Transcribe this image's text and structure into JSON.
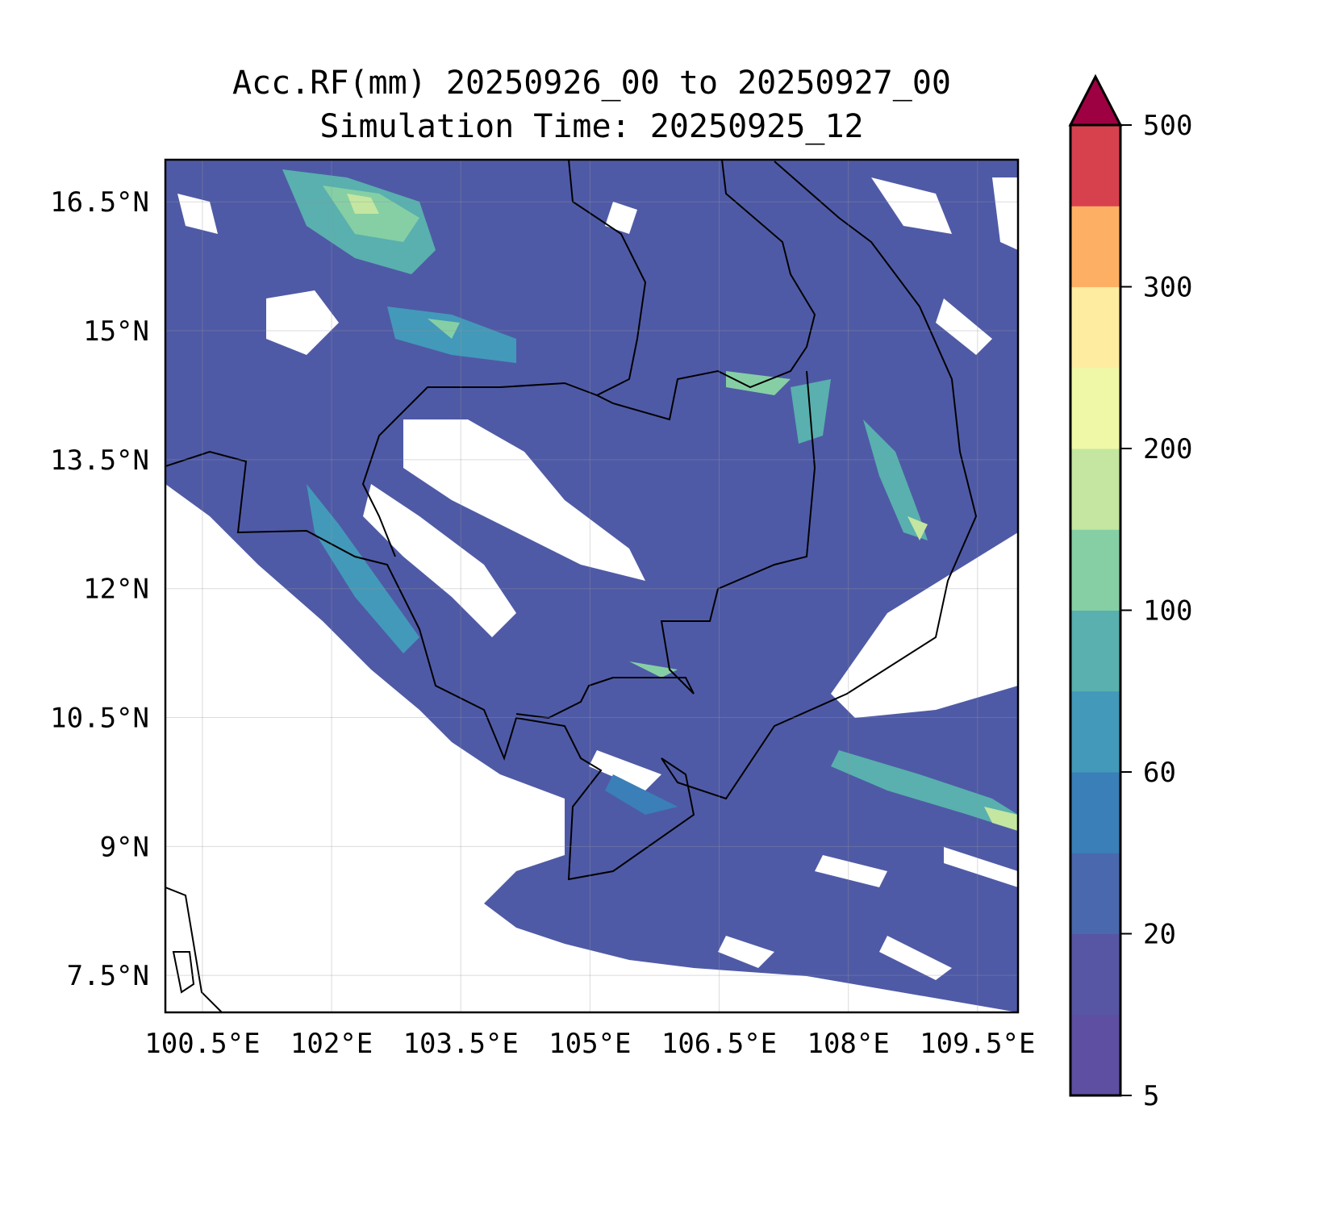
{
  "title": {
    "line1": "Acc.RF(mm) 20250926_00 to 20250927_00",
    "line2": "Simulation Time: 20250925_12"
  },
  "chart_data": {
    "type": "heatmap",
    "subtype": "filled-contour map",
    "title": "Acc.RF(mm) 20250926_00 to 20250927_00 / Simulation Time: 20250925_12",
    "lon_range": [
      100.07,
      109.97
    ],
    "lat_range": [
      7.07,
      16.99
    ],
    "x_ticks": [
      100.5,
      102,
      103.5,
      105,
      106.5,
      108,
      109.5
    ],
    "x_tick_labels": [
      "100.5°E",
      "102°E",
      "103.5°E",
      "105°E",
      "106.5°E",
      "108°E",
      "109.5°E"
    ],
    "y_ticks": [
      16.5,
      15,
      13.5,
      12,
      10.5,
      9,
      7.5
    ],
    "y_tick_labels": [
      "16.5°N",
      "15°N",
      "13.5°N",
      "12°N",
      "10.5°N",
      "9°N",
      "7.5°N"
    ],
    "grid": true,
    "colorbar": {
      "levels": [
        5,
        10,
        20,
        40,
        60,
        80,
        100,
        150,
        200,
        250,
        300,
        400,
        500
      ],
      "colors": [
        "#5e4fa2",
        "#5756a4",
        "#4a68ae",
        "#3a7fb8",
        "#4399b9",
        "#59b0ae",
        "#86cfa5",
        "#c4e6a0",
        "#eff8a6",
        "#feeda1",
        "#fdb063",
        "#d7414e"
      ],
      "extend_color": "#9e0142",
      "tick_values": [
        5,
        20,
        60,
        100,
        200,
        300,
        500
      ],
      "tick_labels": [
        "5",
        "20",
        "60",
        "100",
        "200",
        "300",
        "500"
      ],
      "extend": "max",
      "placement": "right"
    }
  }
}
